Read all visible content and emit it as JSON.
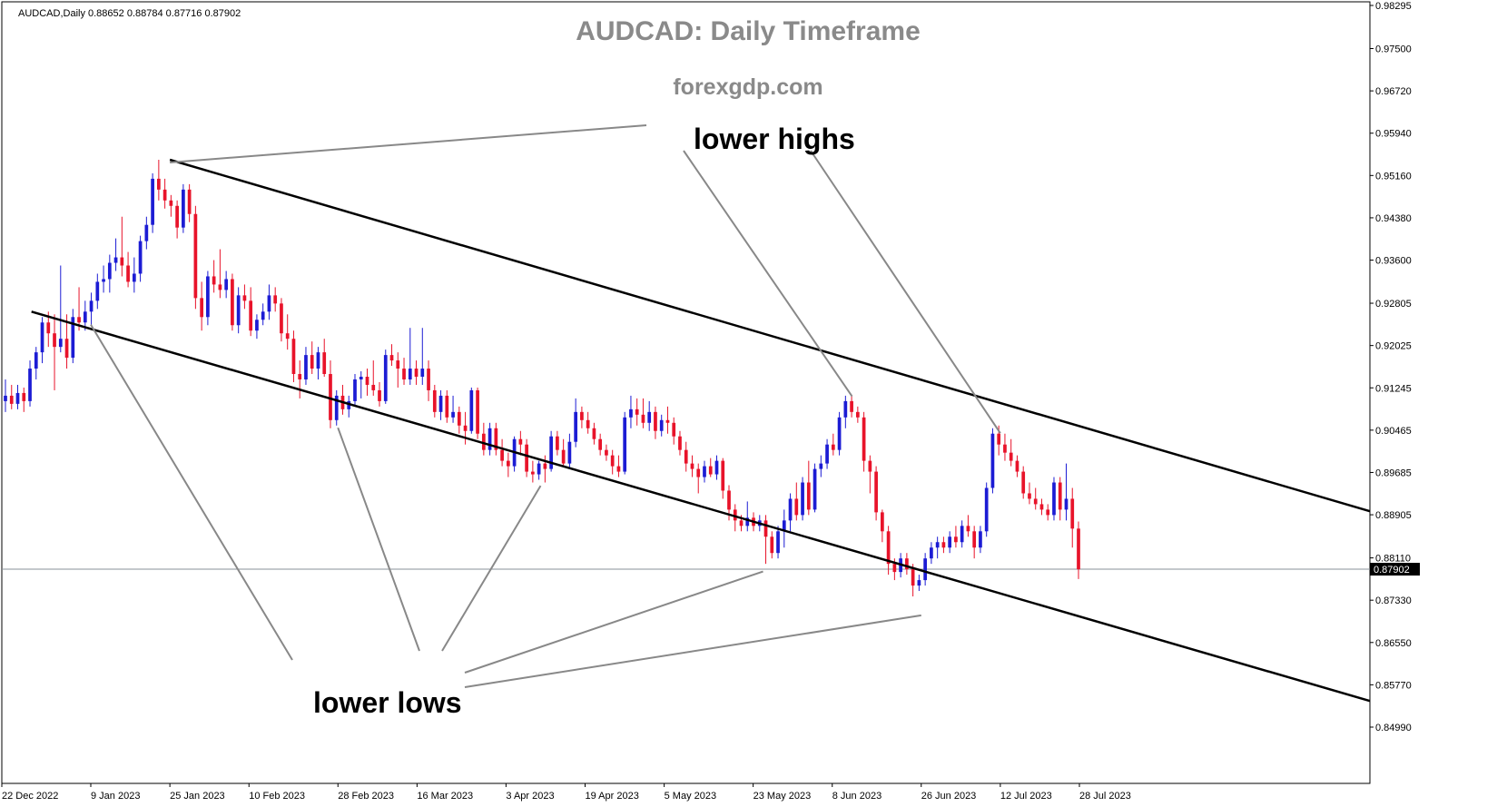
{
  "header": {
    "symbol_info": "AUDCAD,Daily  0.88652 0.88784 0.87716 0.87902"
  },
  "title": "AUDCAD: Daily Timeframe",
  "subtitle": "forexgdp.com",
  "annotations": {
    "upper": "lower highs",
    "lower": "lower lows"
  },
  "current_price": "0.87902",
  "colors": {
    "bull": "#1c1cd4",
    "bear": "#e8132a",
    "trendline": "#000000",
    "pointer": "#888888",
    "title": "#8a8a8a",
    "price_tag": "#000000"
  },
  "chart_data": {
    "type": "candlestick",
    "title": "AUDCAD: Daily Timeframe",
    "subtitle": "forexgdp.com",
    "symbol": "AUDCAD",
    "timeframe": "Daily",
    "header_ohlc": {
      "open": 0.88652,
      "high": 0.88784,
      "low": 0.87716,
      "close": 0.87902
    },
    "y_axis": {
      "ticks": [
        "0.98295",
        "0.97500",
        "0.96720",
        "0.95940",
        "0.95160",
        "0.94380",
        "0.93600",
        "0.92805",
        "0.92025",
        "0.91245",
        "0.90465",
        "0.89685",
        "0.88905",
        "0.88110",
        "0.87330",
        "0.86550",
        "0.85770",
        "0.84990"
      ],
      "ylim": [
        0.846,
        0.9843
      ],
      "position": "right"
    },
    "x_axis": {
      "ticks": [
        "22 Dec 2022",
        "9 Jan 2023",
        "25 Jan 2023",
        "10 Feb 2023",
        "28 Feb 2023",
        "16 Mar 2023",
        "3 Apr 2023",
        "19 Apr 2023",
        "5 May 2023",
        "23 May 2023",
        "8 Jun 2023",
        "26 Jun 2023",
        "12 Jul 2023",
        "28 Jul 2023"
      ]
    },
    "grid": false,
    "current_price": 0.87902,
    "trend_channel": {
      "upper": [
        {
          "date": "25 Jan 2023",
          "price": 0.9545
        },
        {
          "date": "27 Oct 2023",
          "price": 0.8811
        }
      ],
      "lower": [
        {
          "date": "28 Dec 2022",
          "price": 0.9265
        },
        {
          "date": "19 Oct 2023",
          "price": 0.8483
        }
      ]
    },
    "touch_points": {
      "lower_highs": [
        {
          "date": "25 Jan 2023",
          "price": 0.954
        },
        {
          "date": "12 Jun 2023",
          "price": 0.9109
        },
        {
          "date": "12 Jul 2023",
          "price": 0.9041
        }
      ],
      "lower_lows": [
        {
          "date": "9 Jan 2023",
          "price": 0.9241
        },
        {
          "date": "28 Feb 2023",
          "price": 0.9051
        },
        {
          "date": "10 Apr 2023",
          "price": 0.8944
        },
        {
          "date": "25 May 2023",
          "price": 0.8786
        },
        {
          "date": "26 Jun 2023",
          "price": 0.8705
        }
      ]
    },
    "candles": [
      {
        "o": 0.91,
        "h": 0.914,
        "l": 0.908,
        "c": 0.911
      },
      {
        "o": 0.911,
        "h": 0.913,
        "l": 0.9085,
        "c": 0.9095
      },
      {
        "o": 0.9095,
        "h": 0.913,
        "l": 0.9085,
        "c": 0.9115
      },
      {
        "o": 0.9115,
        "h": 0.9125,
        "l": 0.908,
        "c": 0.91
      },
      {
        "o": 0.91,
        "h": 0.9175,
        "l": 0.909,
        "c": 0.916
      },
      {
        "o": 0.916,
        "h": 0.92,
        "l": 0.914,
        "c": 0.919
      },
      {
        "o": 0.919,
        "h": 0.9255,
        "l": 0.917,
        "c": 0.9245
      },
      {
        "o": 0.9245,
        "h": 0.9265,
        "l": 0.92,
        "c": 0.9225
      },
      {
        "o": 0.9225,
        "h": 0.926,
        "l": 0.912,
        "c": 0.92
      },
      {
        "o": 0.92,
        "h": 0.935,
        "l": 0.919,
        "c": 0.9215
      },
      {
        "o": 0.9215,
        "h": 0.926,
        "l": 0.916,
        "c": 0.918
      },
      {
        "o": 0.918,
        "h": 0.927,
        "l": 0.917,
        "c": 0.9255
      },
      {
        "o": 0.9255,
        "h": 0.931,
        "l": 0.923,
        "c": 0.9245
      },
      {
        "o": 0.9245,
        "h": 0.9285,
        "l": 0.923,
        "c": 0.9265
      },
      {
        "o": 0.9265,
        "h": 0.93,
        "l": 0.924,
        "c": 0.9285
      },
      {
        "o": 0.9285,
        "h": 0.9335,
        "l": 0.927,
        "c": 0.932
      },
      {
        "o": 0.932,
        "h": 0.935,
        "l": 0.93,
        "c": 0.9325
      },
      {
        "o": 0.9325,
        "h": 0.937,
        "l": 0.93,
        "c": 0.9355
      },
      {
        "o": 0.9355,
        "h": 0.94,
        "l": 0.934,
        "c": 0.9365
      },
      {
        "o": 0.9365,
        "h": 0.944,
        "l": 0.933,
        "c": 0.935
      },
      {
        "o": 0.935,
        "h": 0.9375,
        "l": 0.931,
        "c": 0.932
      },
      {
        "o": 0.932,
        "h": 0.9365,
        "l": 0.93,
        "c": 0.9335
      },
      {
        "o": 0.9335,
        "h": 0.9405,
        "l": 0.932,
        "c": 0.9395
      },
      {
        "o": 0.9395,
        "h": 0.944,
        "l": 0.938,
        "c": 0.9425
      },
      {
        "o": 0.9425,
        "h": 0.952,
        "l": 0.941,
        "c": 0.951
      },
      {
        "o": 0.951,
        "h": 0.9545,
        "l": 0.947,
        "c": 0.949
      },
      {
        "o": 0.949,
        "h": 0.951,
        "l": 0.9455,
        "c": 0.947
      },
      {
        "o": 0.947,
        "h": 0.948,
        "l": 0.944,
        "c": 0.946
      },
      {
        "o": 0.946,
        "h": 0.947,
        "l": 0.94,
        "c": 0.942
      },
      {
        "o": 0.942,
        "h": 0.95,
        "l": 0.941,
        "c": 0.949
      },
      {
        "o": 0.949,
        "h": 0.95,
        "l": 0.943,
        "c": 0.9445
      },
      {
        "o": 0.9445,
        "h": 0.946,
        "l": 0.927,
        "c": 0.929
      },
      {
        "o": 0.929,
        "h": 0.932,
        "l": 0.923,
        "c": 0.9255
      },
      {
        "o": 0.9255,
        "h": 0.934,
        "l": 0.924,
        "c": 0.933
      },
      {
        "o": 0.933,
        "h": 0.936,
        "l": 0.93,
        "c": 0.9315
      },
      {
        "o": 0.9315,
        "h": 0.938,
        "l": 0.929,
        "c": 0.9305
      },
      {
        "o": 0.9305,
        "h": 0.934,
        "l": 0.929,
        "c": 0.9325
      },
      {
        "o": 0.9325,
        "h": 0.9335,
        "l": 0.923,
        "c": 0.924
      },
      {
        "o": 0.924,
        "h": 0.931,
        "l": 0.9225,
        "c": 0.9295
      },
      {
        "o": 0.9295,
        "h": 0.9315,
        "l": 0.927,
        "c": 0.9285
      },
      {
        "o": 0.9285,
        "h": 0.931,
        "l": 0.922,
        "c": 0.923
      },
      {
        "o": 0.923,
        "h": 0.926,
        "l": 0.9215,
        "c": 0.925
      },
      {
        "o": 0.925,
        "h": 0.928,
        "l": 0.924,
        "c": 0.9265
      },
      {
        "o": 0.9265,
        "h": 0.9315,
        "l": 0.925,
        "c": 0.9295
      },
      {
        "o": 0.9295,
        "h": 0.931,
        "l": 0.9265,
        "c": 0.928
      },
      {
        "o": 0.928,
        "h": 0.929,
        "l": 0.921,
        "c": 0.9225
      },
      {
        "o": 0.9225,
        "h": 0.926,
        "l": 0.9195,
        "c": 0.9215
      },
      {
        "o": 0.9215,
        "h": 0.923,
        "l": 0.9135,
        "c": 0.915
      },
      {
        "o": 0.915,
        "h": 0.9175,
        "l": 0.9105,
        "c": 0.914
      },
      {
        "o": 0.914,
        "h": 0.92,
        "l": 0.913,
        "c": 0.9185
      },
      {
        "o": 0.9185,
        "h": 0.921,
        "l": 0.915,
        "c": 0.916
      },
      {
        "o": 0.916,
        "h": 0.92,
        "l": 0.914,
        "c": 0.919
      },
      {
        "o": 0.919,
        "h": 0.9215,
        "l": 0.9145,
        "c": 0.915
      },
      {
        "o": 0.915,
        "h": 0.9175,
        "l": 0.905,
        "c": 0.9065
      },
      {
        "o": 0.9065,
        "h": 0.912,
        "l": 0.9055,
        "c": 0.911
      },
      {
        "o": 0.911,
        "h": 0.913,
        "l": 0.9075,
        "c": 0.9085
      },
      {
        "o": 0.9085,
        "h": 0.911,
        "l": 0.907,
        "c": 0.91
      },
      {
        "o": 0.91,
        "h": 0.915,
        "l": 0.909,
        "c": 0.914
      },
      {
        "o": 0.914,
        "h": 0.9155,
        "l": 0.9105,
        "c": 0.9145
      },
      {
        "o": 0.9145,
        "h": 0.916,
        "l": 0.911,
        "c": 0.913
      },
      {
        "o": 0.913,
        "h": 0.9175,
        "l": 0.911,
        "c": 0.912
      },
      {
        "o": 0.912,
        "h": 0.9135,
        "l": 0.909,
        "c": 0.91
      },
      {
        "o": 0.91,
        "h": 0.9195,
        "l": 0.9095,
        "c": 0.9185
      },
      {
        "o": 0.9185,
        "h": 0.9205,
        "l": 0.9165,
        "c": 0.9175
      },
      {
        "o": 0.9175,
        "h": 0.919,
        "l": 0.9125,
        "c": 0.916
      },
      {
        "o": 0.916,
        "h": 0.918,
        "l": 0.913,
        "c": 0.914
      },
      {
        "o": 0.914,
        "h": 0.9235,
        "l": 0.913,
        "c": 0.916
      },
      {
        "o": 0.916,
        "h": 0.9175,
        "l": 0.913,
        "c": 0.9145
      },
      {
        "o": 0.9145,
        "h": 0.9235,
        "l": 0.913,
        "c": 0.916
      },
      {
        "o": 0.916,
        "h": 0.9175,
        "l": 0.91,
        "c": 0.912
      },
      {
        "o": 0.912,
        "h": 0.913,
        "l": 0.907,
        "c": 0.908
      },
      {
        "o": 0.908,
        "h": 0.912,
        "l": 0.9065,
        "c": 0.911
      },
      {
        "o": 0.911,
        "h": 0.912,
        "l": 0.906,
        "c": 0.907
      },
      {
        "o": 0.907,
        "h": 0.911,
        "l": 0.906,
        "c": 0.908
      },
      {
        "o": 0.908,
        "h": 0.909,
        "l": 0.904,
        "c": 0.9055
      },
      {
        "o": 0.9055,
        "h": 0.908,
        "l": 0.902,
        "c": 0.9045
      },
      {
        "o": 0.9045,
        "h": 0.9125,
        "l": 0.904,
        "c": 0.912
      },
      {
        "o": 0.912,
        "h": 0.9125,
        "l": 0.903,
        "c": 0.904
      },
      {
        "o": 0.904,
        "h": 0.906,
        "l": 0.9,
        "c": 0.901
      },
      {
        "o": 0.901,
        "h": 0.906,
        "l": 0.9,
        "c": 0.905
      },
      {
        "o": 0.905,
        "h": 0.906,
        "l": 0.9,
        "c": 0.901
      },
      {
        "o": 0.901,
        "h": 0.903,
        "l": 0.898,
        "c": 0.899
      },
      {
        "o": 0.899,
        "h": 0.9005,
        "l": 0.896,
        "c": 0.898
      },
      {
        "o": 0.898,
        "h": 0.9035,
        "l": 0.897,
        "c": 0.903
      },
      {
        "o": 0.903,
        "h": 0.9045,
        "l": 0.9,
        "c": 0.902
      },
      {
        "o": 0.902,
        "h": 0.903,
        "l": 0.896,
        "c": 0.897
      },
      {
        "o": 0.897,
        "h": 0.899,
        "l": 0.895,
        "c": 0.8965
      },
      {
        "o": 0.8965,
        "h": 0.899,
        "l": 0.8955,
        "c": 0.8985
      },
      {
        "o": 0.8985,
        "h": 0.9,
        "l": 0.895,
        "c": 0.8975
      },
      {
        "o": 0.8975,
        "h": 0.9045,
        "l": 0.897,
        "c": 0.9035
      },
      {
        "o": 0.9035,
        "h": 0.9045,
        "l": 0.9,
        "c": 0.901
      },
      {
        "o": 0.901,
        "h": 0.903,
        "l": 0.898,
        "c": 0.8985
      },
      {
        "o": 0.8985,
        "h": 0.904,
        "l": 0.8975,
        "c": 0.9025
      },
      {
        "o": 0.9025,
        "h": 0.9105,
        "l": 0.9015,
        "c": 0.908
      },
      {
        "o": 0.908,
        "h": 0.909,
        "l": 0.905,
        "c": 0.9065
      },
      {
        "o": 0.9065,
        "h": 0.908,
        "l": 0.904,
        "c": 0.905
      },
      {
        "o": 0.905,
        "h": 0.906,
        "l": 0.902,
        "c": 0.903
      },
      {
        "o": 0.903,
        "h": 0.904,
        "l": 0.9,
        "c": 0.901
      },
      {
        "o": 0.901,
        "h": 0.902,
        "l": 0.899,
        "c": 0.9
      },
      {
        "o": 0.9,
        "h": 0.901,
        "l": 0.8965,
        "c": 0.898
      },
      {
        "o": 0.898,
        "h": 0.9,
        "l": 0.896,
        "c": 0.897
      },
      {
        "o": 0.897,
        "h": 0.908,
        "l": 0.8965,
        "c": 0.907
      },
      {
        "o": 0.907,
        "h": 0.911,
        "l": 0.905,
        "c": 0.9085
      },
      {
        "o": 0.9085,
        "h": 0.9105,
        "l": 0.9055,
        "c": 0.9075
      },
      {
        "o": 0.9075,
        "h": 0.9105,
        "l": 0.905,
        "c": 0.906
      },
      {
        "o": 0.906,
        "h": 0.91,
        "l": 0.9045,
        "c": 0.908
      },
      {
        "o": 0.908,
        "h": 0.909,
        "l": 0.903,
        "c": 0.9045
      },
      {
        "o": 0.9045,
        "h": 0.9075,
        "l": 0.9035,
        "c": 0.9065
      },
      {
        "o": 0.9065,
        "h": 0.909,
        "l": 0.904,
        "c": 0.906
      },
      {
        "o": 0.906,
        "h": 0.907,
        "l": 0.902,
        "c": 0.9035
      },
      {
        "o": 0.9035,
        "h": 0.9045,
        "l": 0.9,
        "c": 0.901
      },
      {
        "o": 0.901,
        "h": 0.9025,
        "l": 0.897,
        "c": 0.8985
      },
      {
        "o": 0.8985,
        "h": 0.9,
        "l": 0.896,
        "c": 0.8975
      },
      {
        "o": 0.8975,
        "h": 0.8985,
        "l": 0.893,
        "c": 0.896
      },
      {
        "o": 0.896,
        "h": 0.899,
        "l": 0.895,
        "c": 0.898
      },
      {
        "o": 0.898,
        "h": 0.8995,
        "l": 0.896,
        "c": 0.8965
      },
      {
        "o": 0.8965,
        "h": 0.9,
        "l": 0.8955,
        "c": 0.899
      },
      {
        "o": 0.899,
        "h": 0.8995,
        "l": 0.892,
        "c": 0.8935
      },
      {
        "o": 0.8935,
        "h": 0.8945,
        "l": 0.888,
        "c": 0.89
      },
      {
        "o": 0.89,
        "h": 0.891,
        "l": 0.886,
        "c": 0.888
      },
      {
        "o": 0.888,
        "h": 0.889,
        "l": 0.886,
        "c": 0.887
      },
      {
        "o": 0.887,
        "h": 0.8915,
        "l": 0.886,
        "c": 0.8885
      },
      {
        "o": 0.8885,
        "h": 0.8895,
        "l": 0.886,
        "c": 0.887
      },
      {
        "o": 0.887,
        "h": 0.889,
        "l": 0.886,
        "c": 0.888
      },
      {
        "o": 0.888,
        "h": 0.889,
        "l": 0.88,
        "c": 0.885
      },
      {
        "o": 0.885,
        "h": 0.886,
        "l": 0.881,
        "c": 0.882
      },
      {
        "o": 0.882,
        "h": 0.887,
        "l": 0.881,
        "c": 0.886
      },
      {
        "o": 0.886,
        "h": 0.89,
        "l": 0.883,
        "c": 0.888
      },
      {
        "o": 0.888,
        "h": 0.893,
        "l": 0.886,
        "c": 0.892
      },
      {
        "o": 0.892,
        "h": 0.895,
        "l": 0.888,
        "c": 0.889
      },
      {
        "o": 0.889,
        "h": 0.896,
        "l": 0.888,
        "c": 0.895
      },
      {
        "o": 0.895,
        "h": 0.899,
        "l": 0.889,
        "c": 0.89
      },
      {
        "o": 0.89,
        "h": 0.8985,
        "l": 0.8895,
        "c": 0.8975
      },
      {
        "o": 0.8975,
        "h": 0.9,
        "l": 0.896,
        "c": 0.8985
      },
      {
        "o": 0.8985,
        "h": 0.903,
        "l": 0.8975,
        "c": 0.902
      },
      {
        "o": 0.902,
        "h": 0.904,
        "l": 0.9,
        "c": 0.901
      },
      {
        "o": 0.901,
        "h": 0.908,
        "l": 0.9,
        "c": 0.907
      },
      {
        "o": 0.907,
        "h": 0.911,
        "l": 0.905,
        "c": 0.91
      },
      {
        "o": 0.91,
        "h": 0.911,
        "l": 0.907,
        "c": 0.908
      },
      {
        "o": 0.908,
        "h": 0.909,
        "l": 0.906,
        "c": 0.907
      },
      {
        "o": 0.907,
        "h": 0.908,
        "l": 0.897,
        "c": 0.899
      },
      {
        "o": 0.899,
        "h": 0.9,
        "l": 0.893,
        "c": 0.897
      },
      {
        "o": 0.897,
        "h": 0.898,
        "l": 0.888,
        "c": 0.8895
      },
      {
        "o": 0.8895,
        "h": 0.89,
        "l": 0.884,
        "c": 0.886
      },
      {
        "o": 0.886,
        "h": 0.887,
        "l": 0.878,
        "c": 0.88
      },
      {
        "o": 0.88,
        "h": 0.881,
        "l": 0.877,
        "c": 0.8785
      },
      {
        "o": 0.8785,
        "h": 0.882,
        "l": 0.8775,
        "c": 0.881
      },
      {
        "o": 0.881,
        "h": 0.882,
        "l": 0.878,
        "c": 0.879
      },
      {
        "o": 0.879,
        "h": 0.88,
        "l": 0.874,
        "c": 0.876
      },
      {
        "o": 0.876,
        "h": 0.878,
        "l": 0.875,
        "c": 0.877
      },
      {
        "o": 0.877,
        "h": 0.882,
        "l": 0.876,
        "c": 0.881
      },
      {
        "o": 0.881,
        "h": 0.884,
        "l": 0.88,
        "c": 0.883
      },
      {
        "o": 0.883,
        "h": 0.885,
        "l": 0.881,
        "c": 0.884
      },
      {
        "o": 0.884,
        "h": 0.885,
        "l": 0.882,
        "c": 0.883
      },
      {
        "o": 0.883,
        "h": 0.886,
        "l": 0.882,
        "c": 0.885
      },
      {
        "o": 0.885,
        "h": 0.887,
        "l": 0.883,
        "c": 0.884
      },
      {
        "o": 0.884,
        "h": 0.888,
        "l": 0.883,
        "c": 0.887
      },
      {
        "o": 0.887,
        "h": 0.889,
        "l": 0.885,
        "c": 0.886
      },
      {
        "o": 0.886,
        "h": 0.887,
        "l": 0.881,
        "c": 0.883
      },
      {
        "o": 0.883,
        "h": 0.887,
        "l": 0.882,
        "c": 0.886
      },
      {
        "o": 0.886,
        "h": 0.895,
        "l": 0.885,
        "c": 0.894
      },
      {
        "o": 0.894,
        "h": 0.905,
        "l": 0.893,
        "c": 0.904
      },
      {
        "o": 0.904,
        "h": 0.9055,
        "l": 0.9,
        "c": 0.902
      },
      {
        "o": 0.902,
        "h": 0.904,
        "l": 0.899,
        "c": 0.9005
      },
      {
        "o": 0.9005,
        "h": 0.903,
        "l": 0.898,
        "c": 0.899
      },
      {
        "o": 0.899,
        "h": 0.9,
        "l": 0.896,
        "c": 0.897
      },
      {
        "o": 0.897,
        "h": 0.898,
        "l": 0.892,
        "c": 0.893
      },
      {
        "o": 0.893,
        "h": 0.895,
        "l": 0.891,
        "c": 0.892
      },
      {
        "o": 0.892,
        "h": 0.894,
        "l": 0.89,
        "c": 0.891
      },
      {
        "o": 0.891,
        "h": 0.892,
        "l": 0.889,
        "c": 0.89
      },
      {
        "o": 0.89,
        "h": 0.891,
        "l": 0.888,
        "c": 0.889
      },
      {
        "o": 0.889,
        "h": 0.896,
        "l": 0.888,
        "c": 0.895
      },
      {
        "o": 0.895,
        "h": 0.896,
        "l": 0.888,
        "c": 0.89
      },
      {
        "o": 0.89,
        "h": 0.8985,
        "l": 0.888,
        "c": 0.892
      },
      {
        "o": 0.892,
        "h": 0.894,
        "l": 0.883,
        "c": 0.8865
      },
      {
        "o": 0.8865,
        "h": 0.8878,
        "l": 0.8772,
        "c": 0.879
      }
    ]
  }
}
